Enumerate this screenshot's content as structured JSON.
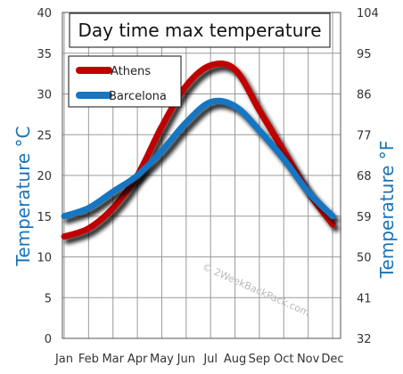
{
  "colors": {
    "athens": "#c00000",
    "barcelona": "#1676c2",
    "axis_title": "#1a73b8",
    "grid": "#9a9a9a"
  },
  "chart_data": {
    "type": "line",
    "title": "Day time max temperature",
    "ylabel_left": "Temperature °C",
    "ylabel_right": "Temperature °F",
    "categories": [
      "Jan",
      "Feb",
      "Mar",
      "Apr",
      "May",
      "Jun",
      "Jul",
      "Aug",
      "Sep",
      "Oct",
      "Nov",
      "Dec"
    ],
    "ylim_left": [
      0,
      40
    ],
    "ylim_right": [
      32,
      104
    ],
    "yticks_left": [
      0,
      5,
      10,
      15,
      20,
      25,
      30,
      35,
      40
    ],
    "yticks_right": [
      32,
      41,
      50,
      59,
      68,
      77,
      86,
      95,
      104
    ],
    "grid": true,
    "legend_position": "top-left",
    "series": [
      {
        "name": "Athens",
        "values": [
          12.5,
          13.5,
          16,
          20,
          26,
          31,
          33.5,
          33,
          28,
          23,
          18,
          14
        ]
      },
      {
        "name": "Barcelona",
        "values": [
          15,
          16,
          18,
          20,
          23,
          26.5,
          29,
          28.5,
          25.5,
          22,
          18,
          15
        ]
      }
    ],
    "watermark": "© 2WeekBackPack.com"
  }
}
